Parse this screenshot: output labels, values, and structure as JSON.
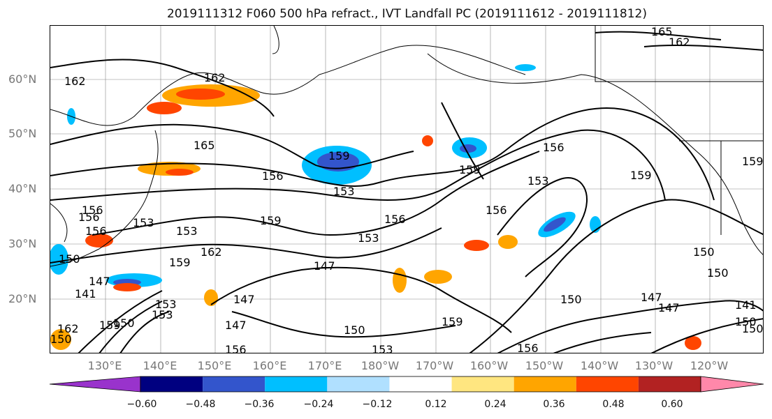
{
  "title": "2019111312 F060 500 hPa refract., IVT Landfall PC (2019111612 - 2019111812)",
  "lat_labels": [
    "60°N",
    "50°N",
    "40°N",
    "30°N",
    "20°N"
  ],
  "lon_labels": [
    "130°E",
    "140°E",
    "150°E",
    "160°E",
    "170°E",
    "180°W",
    "170°W",
    "160°W",
    "150°W",
    "140°W",
    "130°W",
    "120°W"
  ],
  "contour_labels": [
    "162",
    "162",
    "165",
    "162",
    "165",
    "159",
    "156",
    "153",
    "159",
    "156",
    "153",
    "159",
    "156",
    "153",
    "156",
    "156",
    "153",
    "150",
    "147",
    "162",
    "150",
    "147",
    "147",
    "150",
    "150",
    "159",
    "150",
    "147",
    "141",
    "159",
    "150",
    "150",
    "147",
    "141",
    "159",
    "156",
    "156",
    "153",
    "159",
    "153",
    "150",
    "147",
    "162",
    "153",
    "159",
    "156",
    "150",
    "156",
    "153"
  ],
  "colorbar": {
    "colors": [
      "#9933cc",
      "#000080",
      "#3355cc",
      "#00bfff",
      "#b0e0ff",
      "#ffffff",
      "#ffe680",
      "#ffa500",
      "#ff4500",
      "#b22222",
      "#ff88aa"
    ],
    "tick_labels": [
      "−0.60",
      "−0.48",
      "−0.36",
      "−0.24",
      "−0.12",
      "0.12",
      "0.24",
      "0.36",
      "0.48",
      "0.60"
    ]
  }
}
